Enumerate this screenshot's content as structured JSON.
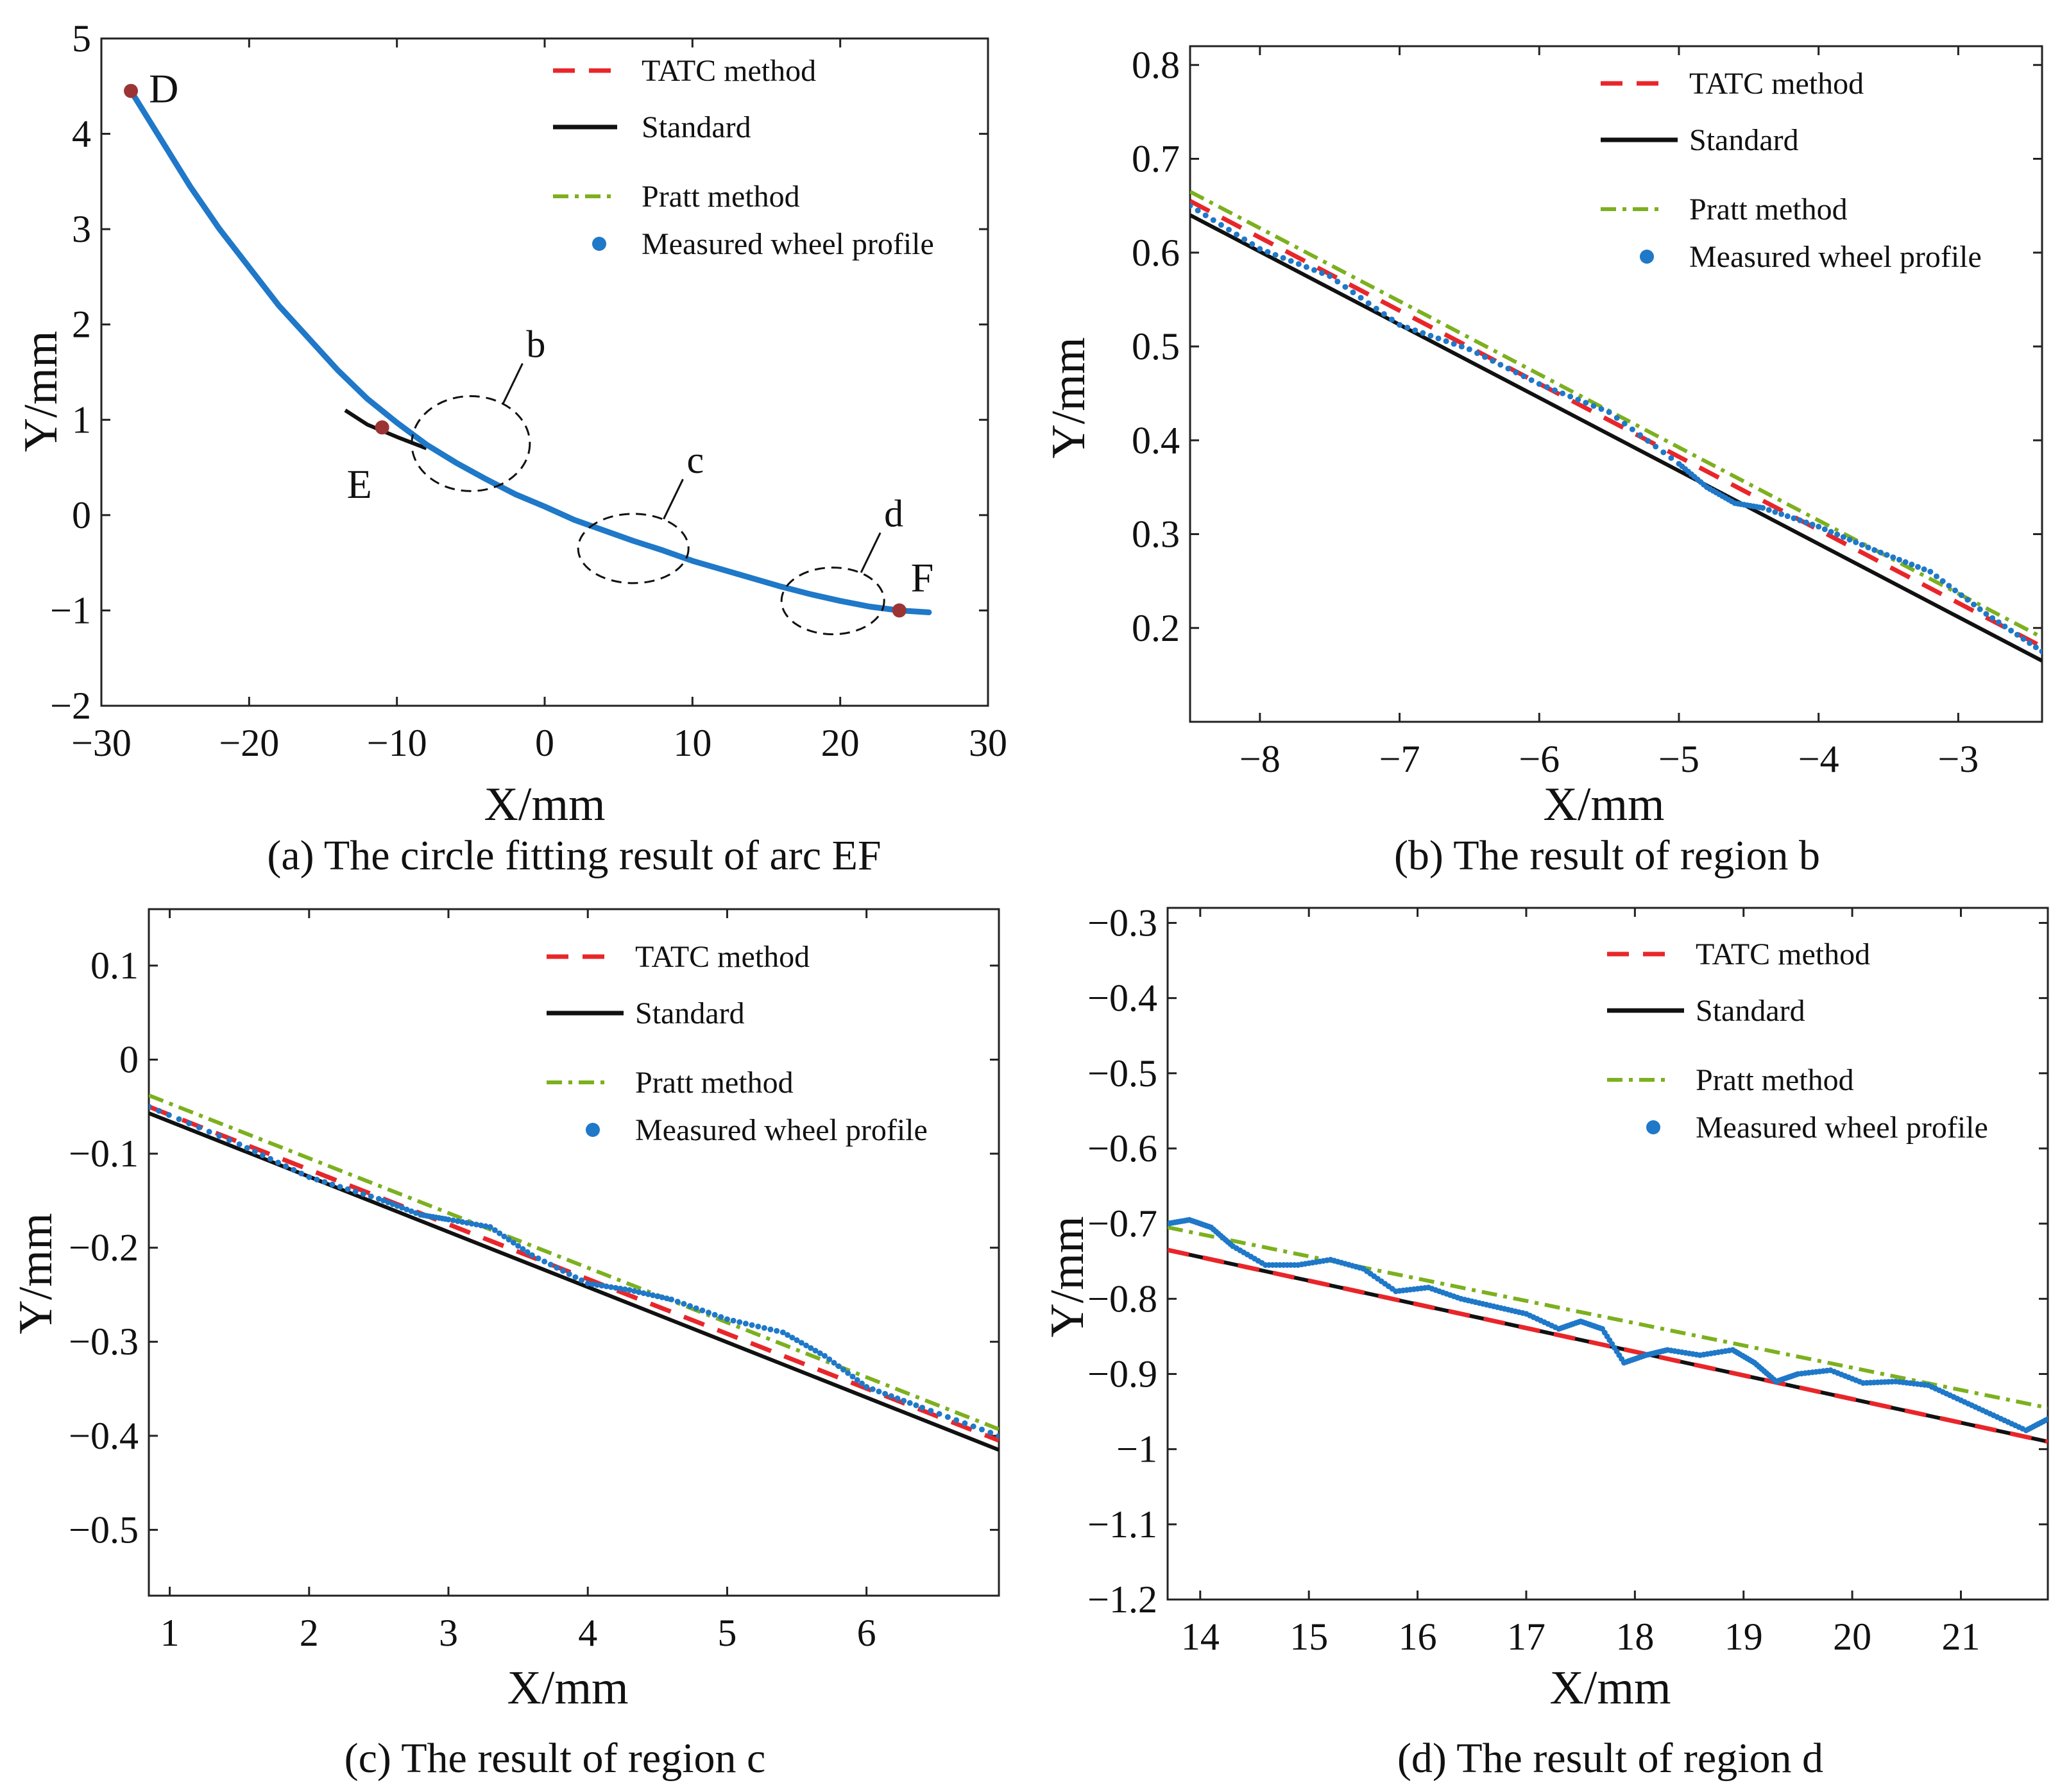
{
  "colors": {
    "tatc": "#e8262a",
    "standard": "#111111",
    "pratt": "#7cb01e",
    "measured": "#1f78c8",
    "point_marker": "#9b3535",
    "point_label": "#9b3535"
  },
  "legend_labels": {
    "tatc": "TATC method",
    "standard": "Standard",
    "pratt": "Pratt method",
    "measured": "Measured wheel profile"
  },
  "chart_data": [
    {
      "id": "a",
      "type": "line",
      "caption": "(a) The circle fitting result of arc EF",
      "xlabel": "X/mm",
      "ylabel": "Y/mm",
      "xlim": [
        -30,
        30
      ],
      "ylim": [
        -2,
        5
      ],
      "xticks": [
        -30,
        -20,
        -10,
        0,
        10,
        20,
        30
      ],
      "yticks": [
        -2,
        -1,
        0,
        1,
        2,
        3,
        4,
        5
      ],
      "xtick_labels": [
        "−30",
        "−20",
        "−10",
        "0",
        "10",
        "20",
        "30"
      ],
      "ytick_labels": [
        "−2",
        "−1",
        "0",
        "1",
        "2",
        "3",
        "4",
        "5"
      ],
      "legend_position": "top-right",
      "series": [
        {
          "name": "Measured wheel profile",
          "key": "measured",
          "style": "dots",
          "x": [
            -28,
            -26,
            -24,
            -22,
            -20,
            -18,
            -16,
            -14,
            -12,
            -10,
            -8,
            -6,
            -4,
            -2,
            0,
            2,
            4,
            6,
            8,
            10,
            12,
            14,
            16,
            18,
            20,
            22,
            24,
            26
          ],
          "y": [
            4.45,
            3.95,
            3.45,
            3.0,
            2.6,
            2.2,
            1.86,
            1.52,
            1.22,
            0.97,
            0.74,
            0.55,
            0.38,
            0.22,
            0.09,
            -0.05,
            -0.16,
            -0.27,
            -0.37,
            -0.48,
            -0.57,
            -0.66,
            -0.75,
            -0.83,
            -0.9,
            -0.96,
            -1.0,
            -1.02
          ]
        },
        {
          "name": "Standard",
          "key": "standard",
          "style": "solid",
          "x": [
            -13.5,
            -12,
            -10,
            -8
          ],
          "y": [
            1.1,
            0.95,
            0.82,
            0.7
          ]
        }
      ],
      "points": [
        {
          "label": "D",
          "x": -28,
          "y": 4.45,
          "label_side": "right"
        },
        {
          "label": "E",
          "x": -11,
          "y": 0.92,
          "label_side": "below-left"
        },
        {
          "label": "F",
          "x": 24,
          "y": -1.0,
          "label_side": "above-right"
        }
      ],
      "regions": [
        {
          "label": "b",
          "cx": -5,
          "cy": 0.75
        },
        {
          "label": "c",
          "cx": 6,
          "cy": -0.35
        },
        {
          "label": "d",
          "cx": 19.5,
          "cy": -0.9
        }
      ]
    },
    {
      "id": "b",
      "type": "line",
      "caption": "(b) The result of region b",
      "xlabel": "X/mm",
      "ylabel": "Y/mm",
      "xlim": [
        -8.5,
        -2.4
      ],
      "ylim": [
        0.1,
        0.82
      ],
      "xticks": [
        -8,
        -7,
        -6,
        -5,
        -4,
        -3
      ],
      "yticks": [
        0.2,
        0.3,
        0.4,
        0.5,
        0.6,
        0.7,
        0.8
      ],
      "xtick_labels": [
        "−8",
        "−7",
        "−6",
        "−5",
        "−4",
        "−3"
      ],
      "ytick_labels": [
        "0.2",
        "0.3",
        "0.4",
        "0.5",
        "0.6",
        "0.7",
        "0.8"
      ],
      "legend_position": "top-right",
      "series": [
        {
          "name": "TATC method",
          "key": "tatc",
          "style": "dashed",
          "x": [
            -8.5,
            -2.4
          ],
          "y": [
            0.655,
            0.18
          ]
        },
        {
          "name": "Standard",
          "key": "standard",
          "style": "solid",
          "x": [
            -8.5,
            -2.4
          ],
          "y": [
            0.64,
            0.165
          ]
        },
        {
          "name": "Pratt method",
          "key": "pratt",
          "style": "dashdot",
          "x": [
            -8.5,
            -2.4
          ],
          "y": [
            0.665,
            0.19
          ]
        },
        {
          "name": "Measured wheel profile",
          "key": "measured",
          "style": "dots",
          "x": [
            -8.5,
            -8.0,
            -7.5,
            -7.0,
            -6.5,
            -6.0,
            -5.5,
            -5.0,
            -4.8,
            -4.6,
            -4.4,
            -4.0,
            -3.6,
            -3.2,
            -2.8,
            -2.4
          ],
          "y": [
            0.65,
            0.604,
            0.575,
            0.523,
            0.497,
            0.46,
            0.43,
            0.375,
            0.35,
            0.333,
            0.328,
            0.308,
            0.283,
            0.26,
            0.215,
            0.175
          ]
        }
      ]
    },
    {
      "id": "c",
      "type": "line",
      "caption": "(c) The result of region c",
      "xlabel": "X/mm",
      "ylabel": "Y/mm",
      "xlim": [
        0.85,
        6.95
      ],
      "ylim": [
        -0.57,
        0.16
      ],
      "xticks": [
        1,
        2,
        3,
        4,
        5,
        6
      ],
      "yticks": [
        -0.5,
        -0.4,
        -0.3,
        -0.2,
        -0.1,
        0,
        0.1
      ],
      "xtick_labels": [
        "1",
        "2",
        "3",
        "4",
        "5",
        "6"
      ],
      "ytick_labels": [
        "−0.5",
        "−0.4",
        "−0.3",
        "−0.2",
        "−0.1",
        "0",
        "0.1"
      ],
      "legend_position": "top-right",
      "series": [
        {
          "name": "TATC method",
          "key": "tatc",
          "style": "dashed",
          "x": [
            0.85,
            6.95
          ],
          "y": [
            -0.05,
            -0.405
          ]
        },
        {
          "name": "Standard",
          "key": "standard",
          "style": "solid",
          "x": [
            0.85,
            6.95
          ],
          "y": [
            -0.057,
            -0.415
          ]
        },
        {
          "name": "Pratt method",
          "key": "pratt",
          "style": "dashdot",
          "x": [
            0.85,
            6.95
          ],
          "y": [
            -0.038,
            -0.393
          ]
        },
        {
          "name": "Measured wheel profile",
          "key": "measured",
          "style": "dots",
          "x": [
            0.85,
            1.5,
            2.0,
            2.5,
            2.8,
            3.0,
            3.3,
            3.6,
            4.0,
            4.3,
            4.6,
            5.0,
            5.4,
            5.7,
            6.0,
            6.4,
            6.95
          ],
          "y": [
            -0.05,
            -0.09,
            -0.125,
            -0.148,
            -0.165,
            -0.17,
            -0.178,
            -0.208,
            -0.238,
            -0.245,
            -0.255,
            -0.276,
            -0.29,
            -0.315,
            -0.348,
            -0.37,
            -0.4
          ]
        }
      ]
    },
    {
      "id": "d",
      "type": "line",
      "caption": "(d) The result of region d",
      "xlabel": "X/mm",
      "ylabel": "Y/mm",
      "xlim": [
        13.7,
        21.8
      ],
      "ylim": [
        -1.2,
        -0.28
      ],
      "xticks": [
        14,
        15,
        16,
        17,
        18,
        19,
        20,
        21
      ],
      "yticks": [
        -1.2,
        -1.1,
        -1.0,
        -0.9,
        -0.8,
        -0.7,
        -0.6,
        -0.5,
        -0.4,
        -0.3
      ],
      "xtick_labels": [
        "14",
        "15",
        "16",
        "17",
        "18",
        "19",
        "20",
        "21"
      ],
      "ytick_labels": [
        "−1.2",
        "−1.1",
        "−1",
        "−0.9",
        "−0.8",
        "−0.7",
        "−0.6",
        "−0.5",
        "−0.4",
        "−0.3"
      ],
      "legend_position": "top-right",
      "series": [
        {
          "name": "TATC method",
          "key": "tatc",
          "style": "dashed",
          "x": [
            13.7,
            21.8
          ],
          "y": [
            -0.735,
            -0.99
          ]
        },
        {
          "name": "Standard",
          "key": "standard",
          "style": "solid",
          "x": [
            13.7,
            21.8
          ],
          "y": [
            -0.735,
            -0.99
          ]
        },
        {
          "name": "Pratt method",
          "key": "pratt",
          "style": "dashdot",
          "x": [
            13.7,
            21.8
          ],
          "y": [
            -0.705,
            -0.945
          ]
        },
        {
          "name": "Measured wheel profile",
          "key": "measured",
          "style": "dots",
          "x": [
            13.7,
            13.9,
            14.1,
            14.3,
            14.6,
            14.9,
            15.2,
            15.5,
            15.8,
            16.1,
            16.4,
            16.7,
            17.0,
            17.3,
            17.5,
            17.7,
            17.9,
            18.1,
            18.3,
            18.6,
            18.9,
            19.1,
            19.3,
            19.5,
            19.8,
            20.1,
            20.4,
            20.7,
            21.0,
            21.3,
            21.6,
            21.8
          ],
          "y": [
            -0.7,
            -0.695,
            -0.705,
            -0.73,
            -0.755,
            -0.755,
            -0.748,
            -0.76,
            -0.79,
            -0.785,
            -0.8,
            -0.81,
            -0.82,
            -0.84,
            -0.83,
            -0.84,
            -0.885,
            -0.875,
            -0.868,
            -0.875,
            -0.868,
            -0.885,
            -0.91,
            -0.9,
            -0.895,
            -0.912,
            -0.91,
            -0.915,
            -0.935,
            -0.955,
            -0.975,
            -0.96
          ]
        }
      ]
    }
  ]
}
